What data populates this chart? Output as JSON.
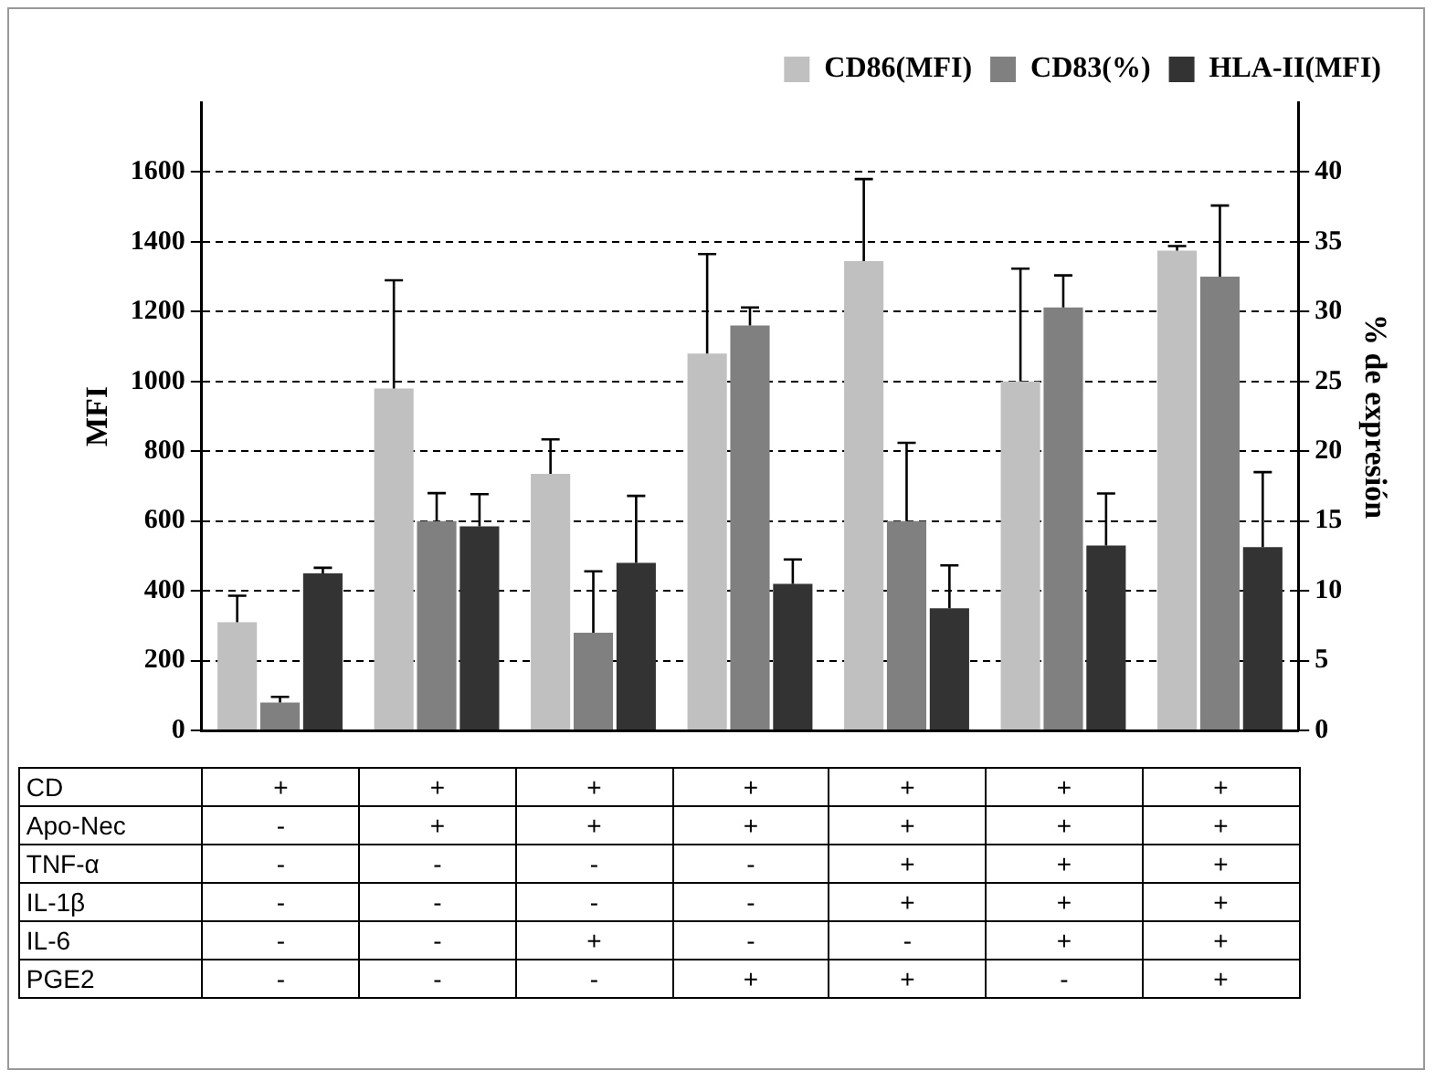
{
  "chart_data": {
    "type": "bar",
    "categories": [
      "+\n-\n-\n-\n-\n-",
      "+\n+\n-\n-\n-\n-",
      "+\n+\n-\n-\n+\n-",
      "+\n+\n-\n-\n-\n+",
      "+\n+\n+\n+\n-\n+",
      "+\n+\n+\n+\n+\n-",
      "+\n+\n+\n+\n+\n+"
    ],
    "series": [
      {
        "name": "CD86(MFI)",
        "color": "#c0c0c0",
        "values": [
          310,
          980,
          735,
          1080,
          1345,
          1000,
          1375
        ],
        "errors": [
          [
            310,
            386
          ],
          [
            980,
            1290
          ],
          [
            735,
            834
          ],
          [
            1080,
            1365
          ],
          [
            1345,
            1580
          ],
          [
            1000,
            1323
          ],
          [
            1375,
            1388
          ]
        ]
      },
      {
        "name": "CD83(%)",
        "color": "#808080",
        "axis": "y2",
        "values": [
          2,
          15,
          7,
          29,
          15,
          30.3,
          32.5
        ],
        "errors": [
          [
            2,
            2.4
          ],
          [
            15,
            17
          ],
          [
            7,
            11.4
          ],
          [
            29,
            30.3
          ],
          [
            15,
            20.6
          ],
          [
            30.3,
            32.6
          ],
          [
            32.5,
            37.6
          ]
        ]
      },
      {
        "name": "HLA-II(MFI)",
        "color": "#333333",
        "values": [
          450,
          585,
          480,
          420,
          350,
          530,
          525
        ],
        "errors": [
          [
            450,
            466
          ],
          [
            585,
            677
          ],
          [
            480,
            672
          ],
          [
            420,
            490
          ],
          [
            350,
            473
          ],
          [
            530,
            679
          ],
          [
            525,
            740
          ]
        ]
      }
    ],
    "ylabel": "MFI",
    "y2label": "% de expresión",
    "ylim": [
      0,
      1800
    ],
    "yticks": [
      0,
      200,
      400,
      600,
      800,
      1000,
      1200,
      1400,
      1600
    ],
    "y2lim": [
      0,
      45
    ],
    "y2ticks": [
      0,
      5,
      10,
      15,
      20,
      25,
      30,
      35,
      40
    ],
    "annotations": [
      "CD",
      "Apo-Nec",
      "TNF-α",
      "IL-1β",
      "IL-6",
      "PGE2"
    ],
    "grid": "y",
    "line_style": "dashed",
    "legend": "top"
  }
}
